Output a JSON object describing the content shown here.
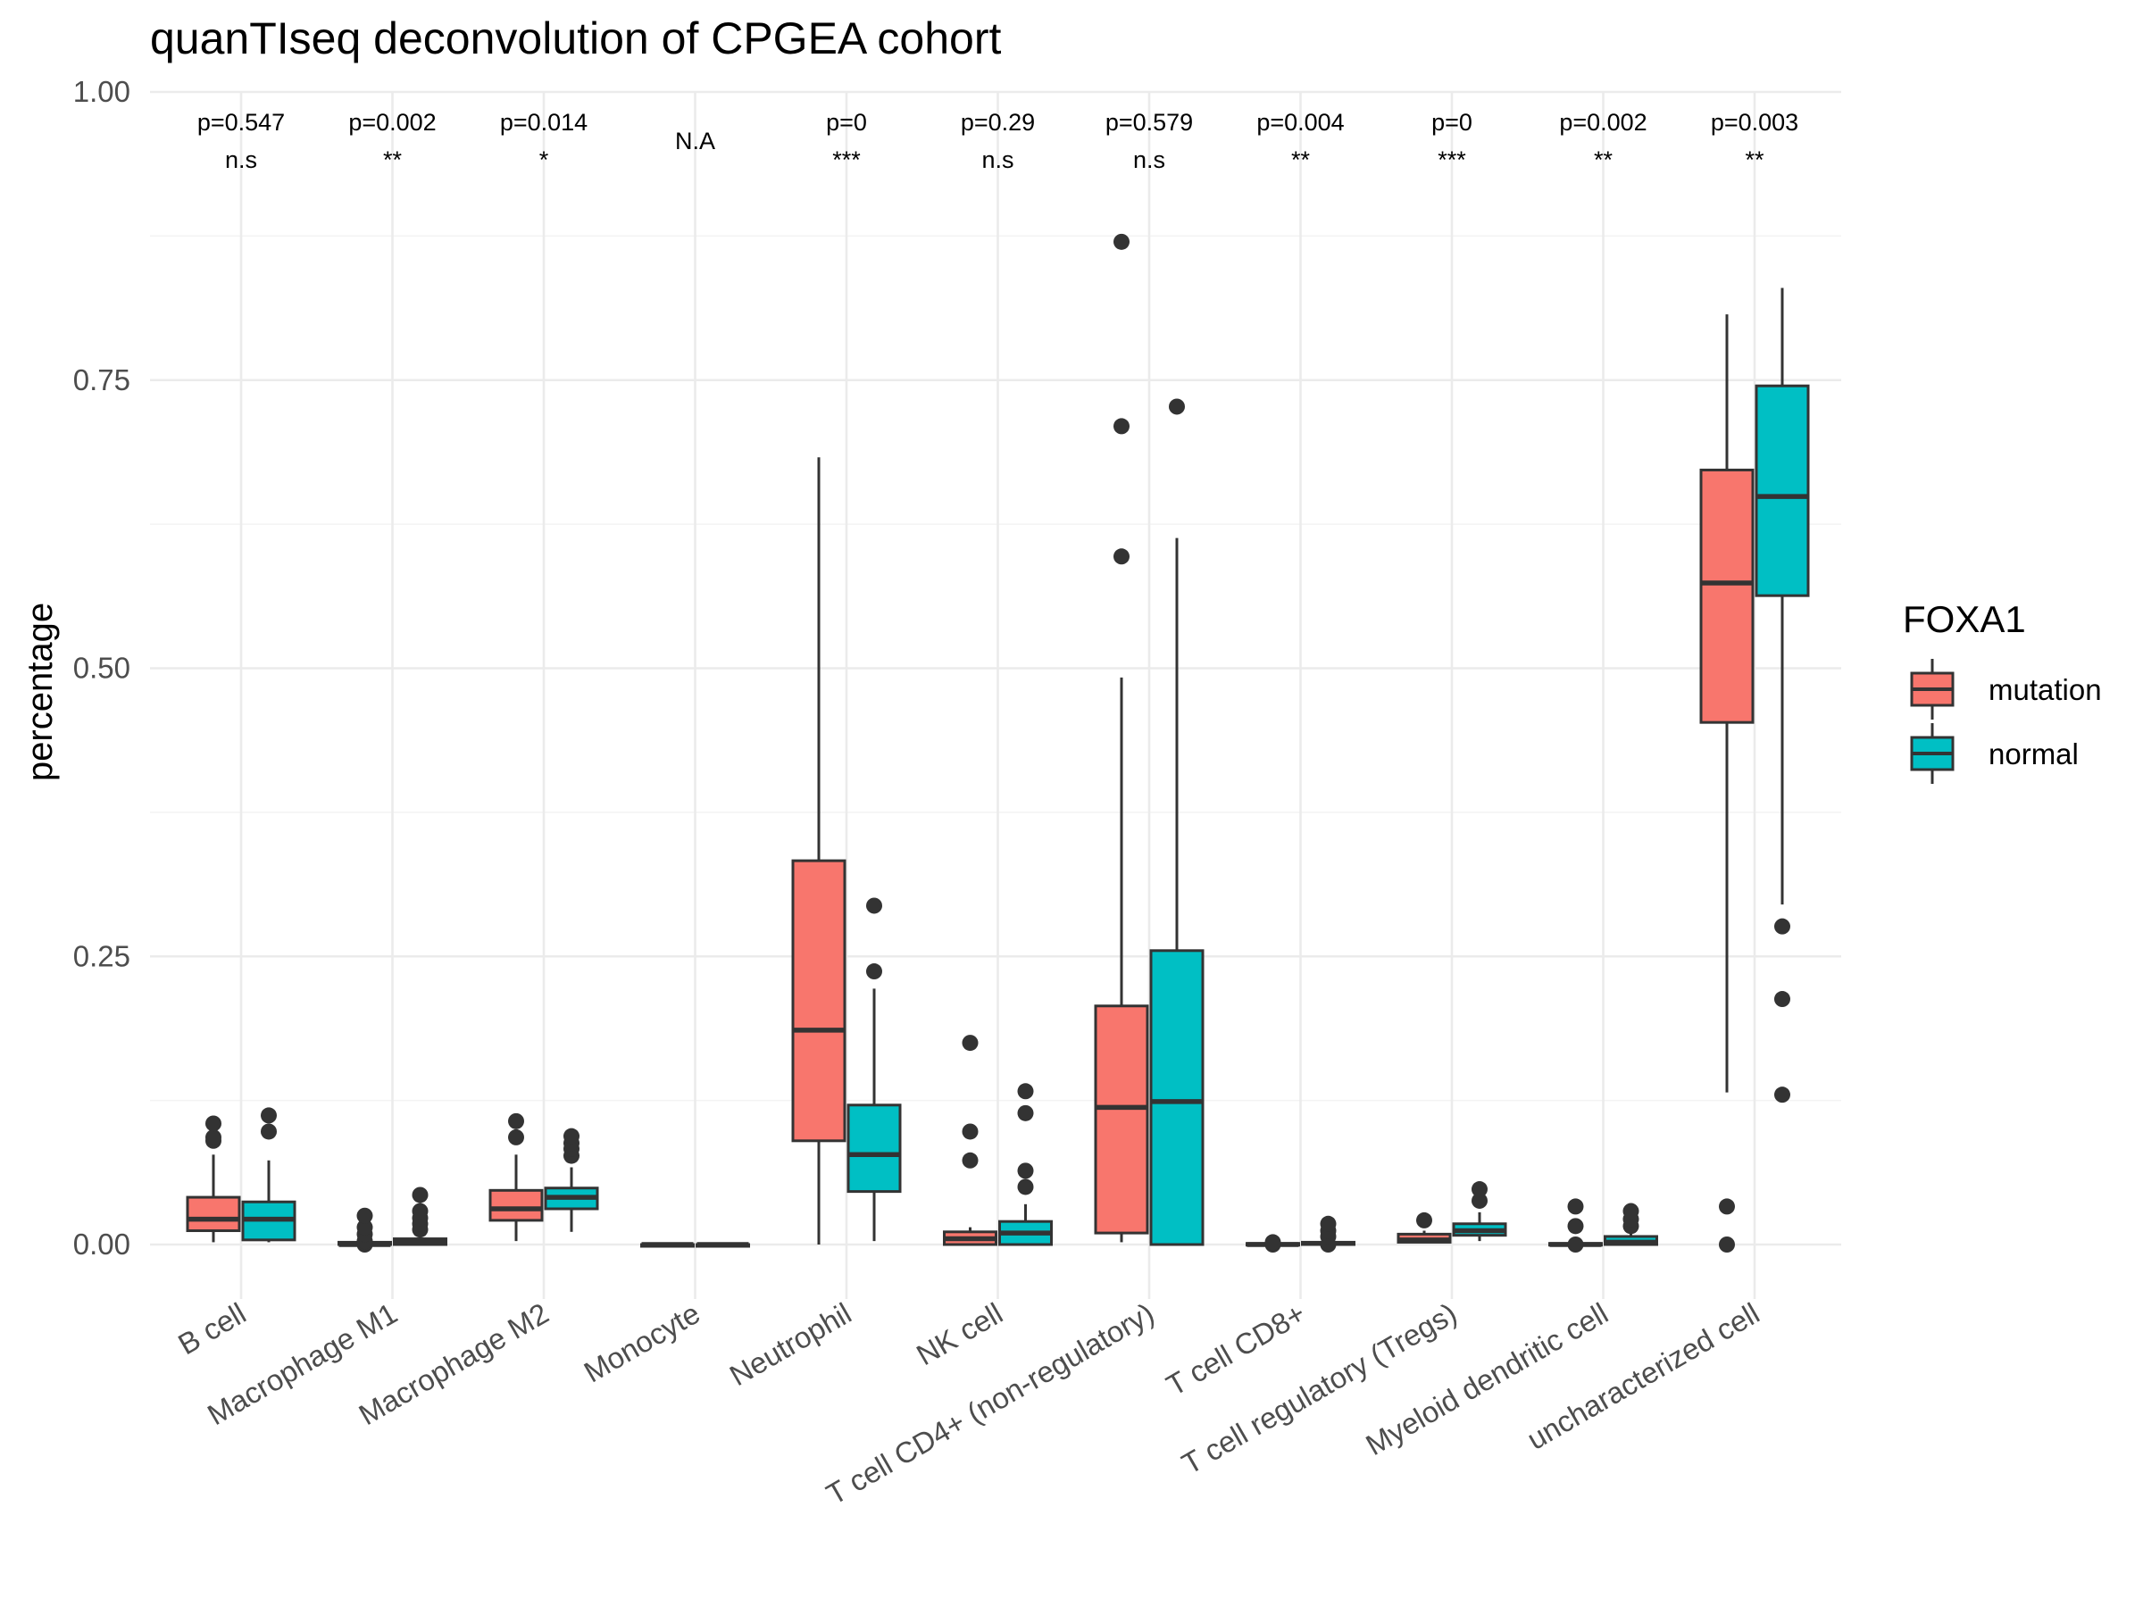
{
  "chart_data": {
    "type": "box",
    "title": "quanTIseq deconvolution of CPGEA cohort",
    "xlabel": "",
    "ylabel": "percentage",
    "ylim": [
      -0.045,
      1.0
    ],
    "yticks": [
      "0.00",
      "0.25",
      "0.50",
      "0.75",
      "1.00"
    ],
    "ytick_values": [
      0,
      0.25,
      0.5,
      0.75,
      1.0
    ],
    "grid": true,
    "legend": {
      "title": "FOXA1",
      "position": "right",
      "entries": [
        {
          "label": "mutation",
          "color": "#F8766D"
        },
        {
          "label": "normal",
          "color": "#00BFC4"
        }
      ]
    },
    "categories": [
      "B cell",
      "Macrophage M1",
      "Macrophage M2",
      "Monocyte",
      "Neutrophil",
      "NK cell",
      "T cell CD4+ (non-regulatory)",
      "T cell CD8+",
      "T cell regulatory (Tregs)",
      "Myeloid dendritic cell",
      "uncharacterized cell"
    ],
    "annotations": [
      {
        "p": "p=0.547",
        "sig": "n.s"
      },
      {
        "p": "p=0.002",
        "sig": "**"
      },
      {
        "p": "p=0.014",
        "sig": "*"
      },
      {
        "p": "",
        "sig": "N.A"
      },
      {
        "p": "p=0",
        "sig": "***"
      },
      {
        "p": "p=0.29",
        "sig": "n.s"
      },
      {
        "p": "p=0.579",
        "sig": "n.s"
      },
      {
        "p": "p=0.004",
        "sig": "**"
      },
      {
        "p": "p=0",
        "sig": "***"
      },
      {
        "p": "p=0.002",
        "sig": "**"
      },
      {
        "p": "p=0.003",
        "sig": "**"
      }
    ],
    "series": [
      {
        "name": "mutation",
        "color": "#F8766D",
        "boxes": [
          {
            "min": 0.002,
            "q1": 0.012,
            "median": 0.022,
            "q3": 0.041,
            "max": 0.078,
            "outliers": [
              0.09,
              0.093,
              0.105
            ]
          },
          {
            "min": 0.0,
            "q1": 0.0,
            "median": 0.0,
            "q3": 0.002,
            "max": 0.004,
            "outliers": [
              0.0,
              0.003,
              0.009,
              0.015,
              0.025
            ]
          },
          {
            "min": 0.003,
            "q1": 0.021,
            "median": 0.031,
            "q3": 0.047,
            "max": 0.078,
            "outliers": [
              0.093,
              0.107
            ]
          },
          {
            "min": 0.0,
            "q1": 0.0,
            "median": 0.0,
            "q3": 0.0,
            "max": 0.0,
            "outliers": []
          },
          {
            "min": 0.0,
            "q1": 0.09,
            "median": 0.186,
            "q3": 0.333,
            "max": 0.683,
            "outliers": []
          },
          {
            "min": 0.0,
            "q1": 0.0,
            "median": 0.005,
            "q3": 0.011,
            "max": 0.015,
            "outliers": [
              0.073,
              0.098,
              0.175
            ]
          },
          {
            "min": 0.002,
            "q1": 0.01,
            "median": 0.119,
            "q3": 0.207,
            "max": 0.492,
            "outliers": [
              0.597,
              0.71,
              0.87
            ]
          },
          {
            "min": 0.0,
            "q1": 0.0,
            "median": 0.0,
            "q3": 0.001,
            "max": 0.002,
            "outliers": [
              0.0,
              0.002
            ]
          },
          {
            "min": 0.002,
            "q1": 0.002,
            "median": 0.004,
            "q3": 0.009,
            "max": 0.012,
            "outliers": [
              0.021
            ]
          },
          {
            "min": 0.0,
            "q1": 0.0,
            "median": 0.0,
            "q3": 0.001,
            "max": 0.002,
            "outliers": [
              0.0,
              0.016,
              0.033
            ]
          },
          {
            "min": 0.132,
            "q1": 0.453,
            "median": 0.574,
            "q3": 0.672,
            "max": 0.807,
            "outliers": [
              0.0,
              0.033
            ]
          }
        ]
      },
      {
        "name": "normal",
        "color": "#00BFC4",
        "boxes": [
          {
            "min": 0.002,
            "q1": 0.004,
            "median": 0.022,
            "q3": 0.037,
            "max": 0.073,
            "outliers": [
              0.098,
              0.112
            ]
          },
          {
            "min": 0.0,
            "q1": 0.0,
            "median": 0.002,
            "q3": 0.005,
            "max": 0.009,
            "outliers": [
              0.013,
              0.018,
              0.023,
              0.029,
              0.043
            ]
          },
          {
            "min": 0.011,
            "q1": 0.031,
            "median": 0.041,
            "q3": 0.049,
            "max": 0.067,
            "outliers": [
              0.077,
              0.083,
              0.088,
              0.094
            ]
          },
          {
            "min": 0.0,
            "q1": 0.0,
            "median": 0.0,
            "q3": 0.0,
            "max": 0.0,
            "outliers": []
          },
          {
            "min": 0.003,
            "q1": 0.046,
            "median": 0.078,
            "q3": 0.121,
            "max": 0.222,
            "outliers": [
              0.237,
              0.294
            ]
          },
          {
            "min": 0.0,
            "q1": 0.0,
            "median": 0.01,
            "q3": 0.02,
            "max": 0.035,
            "outliers": [
              0.05,
              0.064,
              0.114,
              0.133
            ]
          },
          {
            "min": 0.0,
            "q1": 0.0,
            "median": 0.124,
            "q3": 0.255,
            "max": 0.613,
            "outliers": [
              0.727
            ]
          },
          {
            "min": 0.0,
            "q1": 0.0,
            "median": 0.001,
            "q3": 0.002,
            "max": 0.004,
            "outliers": [
              0.0,
              0.007,
              0.012,
              0.018
            ]
          },
          {
            "min": 0.003,
            "q1": 0.008,
            "median": 0.012,
            "q3": 0.018,
            "max": 0.028,
            "outliers": [
              0.038,
              0.048
            ]
          },
          {
            "min": 0.0,
            "q1": 0.0,
            "median": 0.002,
            "q3": 0.007,
            "max": 0.011,
            "outliers": [
              0.016,
              0.022,
              0.029
            ]
          },
          {
            "min": 0.295,
            "q1": 0.563,
            "median": 0.649,
            "q3": 0.745,
            "max": 0.83,
            "outliers": [
              0.13,
              0.213,
              0.276
            ]
          }
        ]
      }
    ]
  }
}
